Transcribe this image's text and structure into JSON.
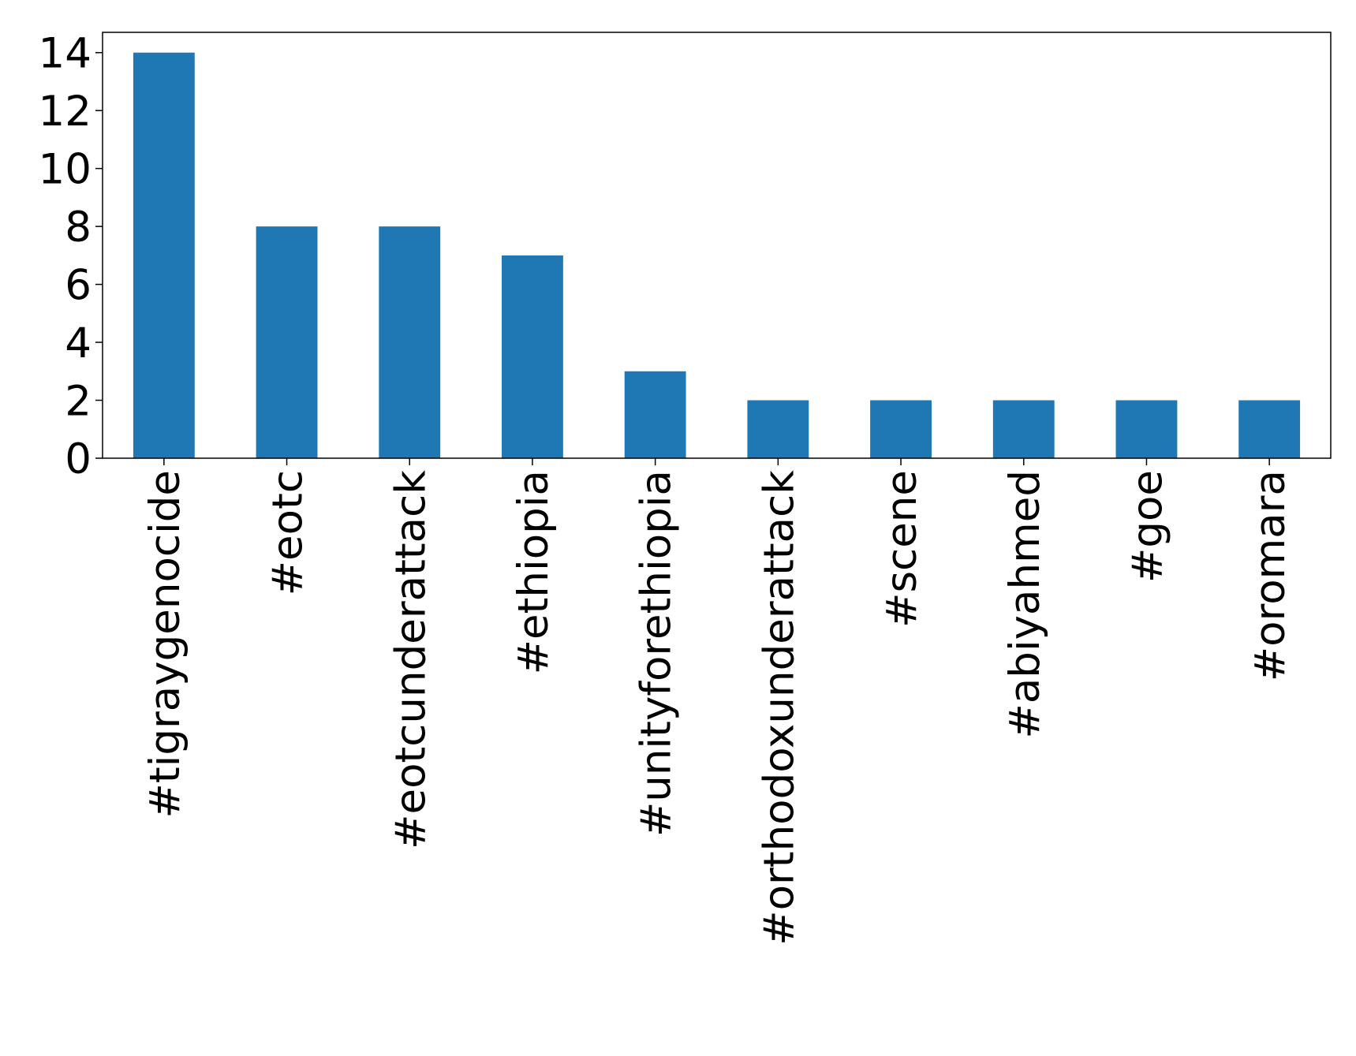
{
  "chart_data": {
    "type": "bar",
    "categories": [
      "#tigraygenocide",
      "#eotc",
      "#eotcunderattack",
      "#ethiopia",
      "#unityforethiopia",
      "#orthodoxunderattack",
      "#scene",
      "#abiyahmed",
      "#goe",
      "#oromara"
    ],
    "values": [
      14,
      8,
      8,
      7,
      3,
      2,
      2,
      2,
      2,
      2
    ],
    "color": "#1f77b4",
    "ylim": [
      0,
      14.7
    ],
    "yticks": [
      0,
      2,
      4,
      6,
      8,
      10,
      12,
      14
    ],
    "grid": false
  }
}
